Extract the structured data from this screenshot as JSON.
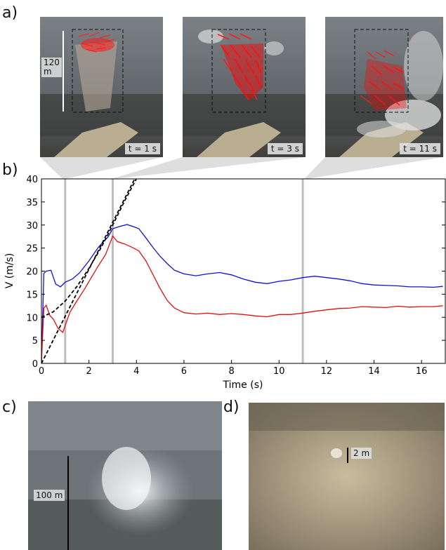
{
  "panel_labels": {
    "a": "a)",
    "b": "b)",
    "c": "c)",
    "d": "d)"
  },
  "panel_a": {
    "photos": [
      {
        "time_label": "t = 1 s",
        "scale_label": "120\nm"
      },
      {
        "time_label": "t = 3 s"
      },
      {
        "time_label": "t = 11 s"
      }
    ]
  },
  "panel_c": {
    "scale_label": "100 m"
  },
  "panel_d": {
    "scale_label": "2 m"
  },
  "colors": {
    "upper_series": "#1010d8",
    "lower_series": "#e01010",
    "fit_curves": "#000000",
    "time_markers": "#bdbdbd",
    "vectors": "#ff0000"
  },
  "chart_data": {
    "type": "line",
    "xlabel": "Time (s)",
    "ylabel": "V (m/s)",
    "xlim": [
      0,
      17
    ],
    "ylim": [
      0,
      40
    ],
    "x_ticks": [
      0,
      2,
      4,
      6,
      8,
      10,
      12,
      14,
      16
    ],
    "y_ticks": [
      0,
      5,
      10,
      15,
      20,
      25,
      30,
      35,
      40
    ],
    "grid": false,
    "time_markers": [
      1,
      3,
      11
    ],
    "series": [
      {
        "style": "solid",
        "color": "#1010d8",
        "x": [
          0,
          0.1,
          0.2,
          0.4,
          0.6,
          0.8,
          1.0,
          1.3,
          1.6,
          2.0,
          2.4,
          2.8,
          3.0,
          3.3,
          3.6,
          3.9,
          4.1,
          4.4,
          4.7,
          5.0,
          5.3,
          5.6,
          6.0,
          6.5,
          7.0,
          7.5,
          8.0,
          8.5,
          9.0,
          9.5,
          10.0,
          10.5,
          11.0,
          11.5,
          12.0,
          12.5,
          13.0,
          13.5,
          14.0,
          14.5,
          15.0,
          15.5,
          16.0,
          16.5,
          16.9
        ],
        "y": [
          0,
          19.5,
          20.0,
          20.2,
          17.2,
          16.6,
          17.6,
          18.3,
          19.6,
          22.2,
          25.2,
          27.4,
          29.2,
          29.7,
          30.1,
          29.6,
          29.2,
          27.2,
          25.1,
          23.2,
          21.6,
          20.2,
          19.4,
          19.0,
          19.4,
          19.7,
          19.2,
          18.3,
          17.6,
          17.3,
          17.8,
          18.1,
          18.6,
          18.9,
          18.6,
          18.3,
          17.9,
          17.3,
          17.0,
          16.9,
          16.8,
          16.6,
          16.6,
          16.5,
          16.7
        ]
      },
      {
        "style": "solid",
        "color": "#e01010",
        "x": [
          0,
          0.1,
          0.2,
          0.35,
          0.5,
          0.7,
          0.9,
          1.0,
          1.2,
          1.5,
          1.8,
          2.1,
          2.4,
          2.7,
          3.0,
          3.2,
          3.5,
          3.8,
          4.1,
          4.4,
          4.7,
          5.0,
          5.3,
          5.6,
          6.0,
          6.5,
          7.0,
          7.5,
          8.0,
          8.5,
          9.0,
          9.5,
          10.0,
          10.5,
          11.0,
          11.5,
          12.0,
          12.5,
          13.0,
          13.5,
          14.0,
          14.5,
          15.0,
          15.5,
          16.0,
          16.5,
          16.9
        ],
        "y": [
          0,
          12.0,
          12.6,
          10.4,
          9.6,
          7.6,
          6.7,
          8.2,
          11.1,
          13.6,
          16.0,
          18.6,
          21.2,
          23.6,
          27.6,
          26.4,
          25.9,
          25.2,
          24.4,
          22.2,
          19.2,
          16.2,
          13.6,
          12.0,
          11.0,
          10.7,
          10.9,
          10.6,
          10.8,
          10.6,
          10.3,
          10.1,
          10.6,
          10.6,
          10.9,
          11.3,
          11.6,
          11.9,
          12.0,
          12.3,
          12.2,
          12.1,
          12.4,
          12.2,
          12.3,
          12.3,
          12.5
        ]
      },
      {
        "style": "dashed",
        "color": "#000000",
        "x": [
          0,
          0.5,
          1.0,
          1.5,
          2.0,
          2.5,
          3.0,
          3.5,
          4.2
        ],
        "y": [
          10.0,
          11.2,
          13.5,
          16.7,
          20.6,
          25.0,
          30.0,
          35.2,
          42.0
        ]
      },
      {
        "style": "dashed",
        "color": "#000000",
        "x": [
          0,
          0.5,
          1.0,
          1.5,
          2.0,
          2.5,
          3.0,
          3.5,
          4.1
        ],
        "y": [
          0,
          5.1,
          10.2,
          15.3,
          20.4,
          25.5,
          30.6,
          35.7,
          41.8
        ]
      }
    ]
  }
}
